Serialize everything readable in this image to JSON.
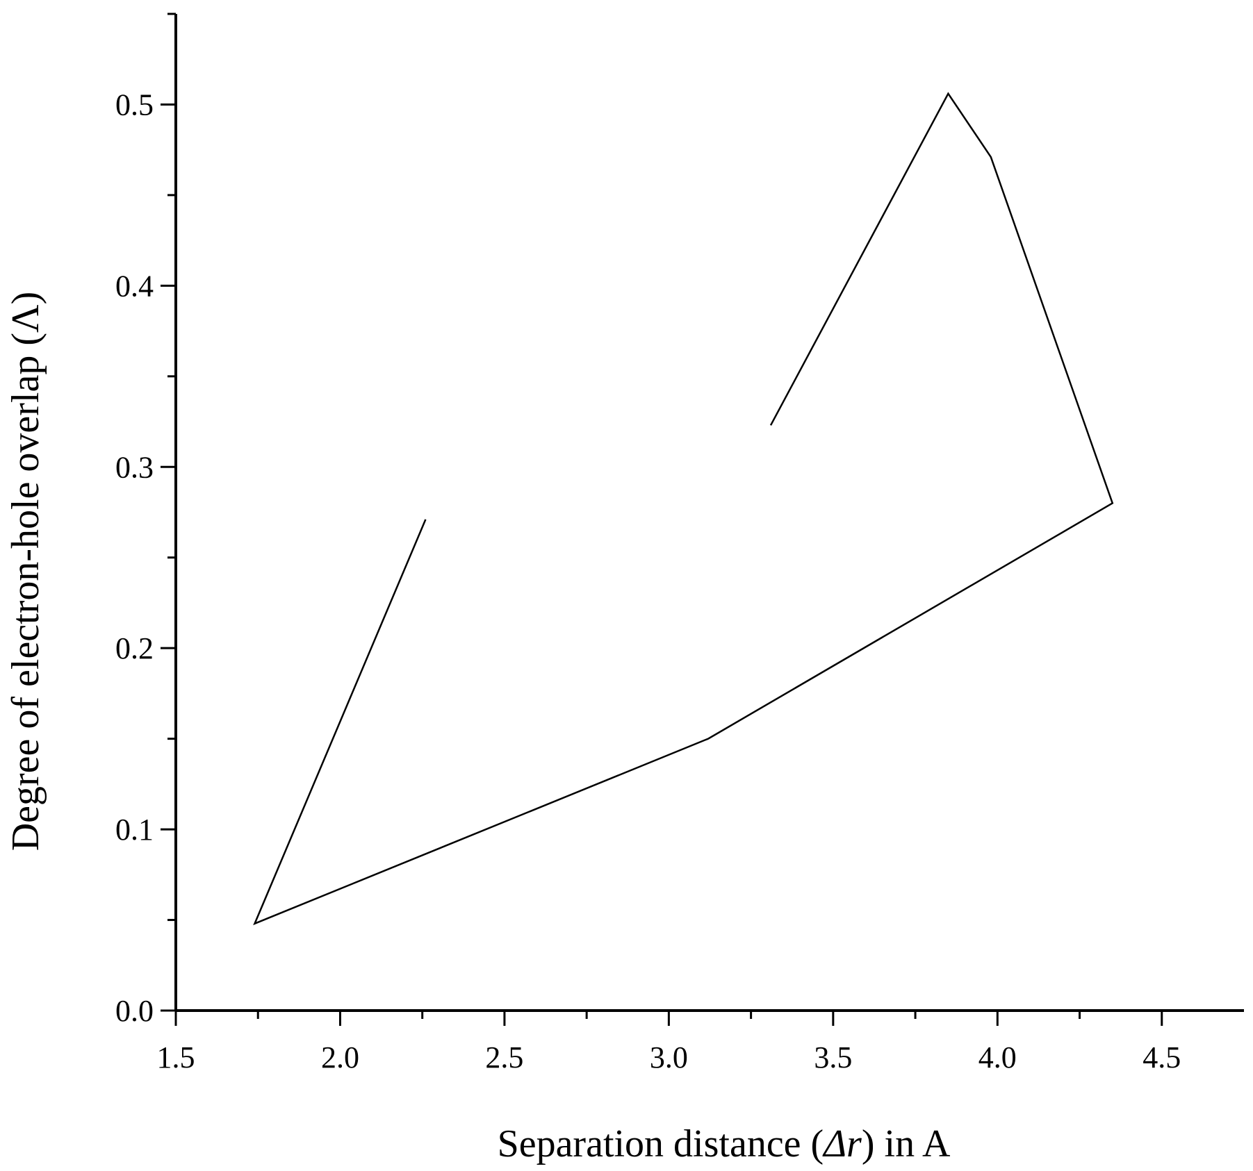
{
  "chart_data": {
    "type": "line",
    "xlabel": {
      "prefix": "Separation distance (",
      "symbol": "Δr",
      "suffix": ") in A"
    },
    "ylabel": "Degree of electron-hole overlap (Λ)",
    "xlim": [
      1.5,
      4.75
    ],
    "ylim": [
      0,
      0.55
    ],
    "x_ticks": [
      1.5,
      2.0,
      2.5,
      3.0,
      3.5,
      4.0,
      4.5
    ],
    "x_tick_labels": [
      "1.5",
      "2.0",
      "2.5",
      "3.0",
      "3.5",
      "4.0",
      "4.5"
    ],
    "x_minor_ticks": [
      1.75,
      2.25,
      2.75,
      3.25,
      3.75,
      4.25
    ],
    "y_ticks": [
      0.0,
      0.1,
      0.2,
      0.3,
      0.4,
      0.5
    ],
    "y_tick_labels": [
      "0.0",
      "0.1",
      "0.2",
      "0.3",
      "0.4",
      "0.5"
    ],
    "y_minor_ticks": [
      0.05,
      0.15,
      0.25,
      0.35,
      0.45,
      0.55
    ],
    "grid": false,
    "series": [
      {
        "x": [
          3.31,
          3.85,
          3.98,
          4.35,
          3.12,
          1.74,
          2.26
        ],
        "y": [
          0.323,
          0.506,
          0.471,
          0.28,
          0.15,
          0.048,
          0.271
        ]
      }
    ]
  }
}
